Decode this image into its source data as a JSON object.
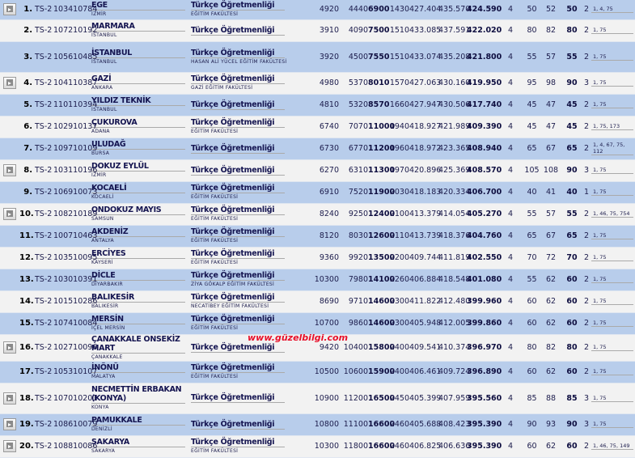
{
  "watermark": "www.güzelbilgi.com",
  "colors": {
    "row_alt": "#b8cdeb",
    "row_plain": "#f2f2f2",
    "watermark": "#e8102a"
  },
  "rows": [
    {
      "video": true,
      "rank": "1.",
      "type": "TS-2",
      "code": "103410784",
      "university": "EGE",
      "city": "İZMİR",
      "program": "Türkçe Öğretmenliği",
      "faculty": "EĞİTİM FAKÜLTESİ",
      "v1": "4920",
      "v2": "4440",
      "v3": "6900",
      "v4": "1430",
      "v5": "427.404",
      "v6": "435.570",
      "v7": "424.590",
      "v8": "4",
      "v9": "50",
      "v10": "52",
      "v11": "50",
      "v12": "2",
      "notes": "1, 4, 75"
    },
    {
      "video": false,
      "rank": "2.",
      "type": "TS-2",
      "code": "107210192",
      "university": "MARMARA",
      "city": "İSTANBUL",
      "program": "Türkçe Öğretmenliği",
      "faculty": "",
      "v1": "3910",
      "v2": "4090",
      "v3": "7500",
      "v4": "1510",
      "v5": "433.085",
      "v6": "437.591",
      "v7": "422.020",
      "v8": "4",
      "v9": "80",
      "v10": "82",
      "v11": "80",
      "v12": "2",
      "notes": "1, 75"
    },
    {
      "video": false,
      "rank": "3.",
      "type": "TS-2",
      "code": "105610485",
      "university": "İSTANBUL",
      "city": "İSTANBUL",
      "program": "Türkçe Öğretmenliği",
      "faculty": "HASAN ALİ YÜCEL EĞİTİM FAKÜLTESİ",
      "v1": "3920",
      "v2": "4500",
      "v3": "7550",
      "v4": "1510",
      "v5": "433.074",
      "v6": "435.208",
      "v7": "421.800",
      "v8": "4",
      "v9": "55",
      "v10": "57",
      "v11": "55",
      "v12": "2",
      "notes": "1, 75"
    },
    {
      "video": true,
      "rank": "4.",
      "type": "TS-2",
      "code": "104110387",
      "university": "GAZİ",
      "city": "ANKARA",
      "program": "Türkçe Öğretmenliği",
      "faculty": "GAZİ EĞİTİM FAKÜLTESİ",
      "v1": "4980",
      "v2": "5370",
      "v3": "8010",
      "v4": "1570",
      "v5": "427.063",
      "v6": "430.160",
      "v7": "419.950",
      "v8": "4",
      "v9": "95",
      "v10": "98",
      "v11": "90",
      "v12": "3",
      "notes": "1, 75"
    },
    {
      "video": false,
      "rank": "5.",
      "type": "TS-2",
      "code": "110110394",
      "university": "YILDIZ TEKNİK",
      "city": "İSTANBUL",
      "program": "Türkçe Öğretmenliği",
      "faculty": "",
      "v1": "4810",
      "v2": "5320",
      "v3": "8570",
      "v4": "1660",
      "v5": "427.947",
      "v6": "430.506",
      "v7": "417.740",
      "v8": "4",
      "v9": "45",
      "v10": "47",
      "v11": "45",
      "v12": "2",
      "notes": "1, 75"
    },
    {
      "video": false,
      "rank": "6.",
      "type": "TS-2",
      "code": "102910137",
      "university": "ÇUKUROVA",
      "city": "ADANA",
      "program": "Türkçe Öğretmenliği",
      "faculty": "EĞİTİM FAKÜLTESİ",
      "v1": "6740",
      "v2": "7070",
      "v3": "11000",
      "v4": "1940",
      "v5": "418.927",
      "v6": "421.989",
      "v7": "409.390",
      "v8": "4",
      "v9": "45",
      "v10": "47",
      "v11": "45",
      "v12": "2",
      "notes": "1, 75, 173"
    },
    {
      "video": false,
      "rank": "7.",
      "type": "TS-2",
      "code": "109710109",
      "university": "ULUDAĞ",
      "city": "BURSA",
      "program": "Türkçe Öğretmenliği",
      "faculty": "",
      "v1": "6730",
      "v2": "6770",
      "v3": "11200",
      "v4": "1960",
      "v5": "418.972",
      "v6": "423.365",
      "v7": "408.940",
      "v8": "4",
      "v9": "65",
      "v10": "67",
      "v11": "65",
      "v12": "2",
      "notes": "1, 4, 67, 75, 112"
    },
    {
      "video": true,
      "rank": "8.",
      "type": "TS-2",
      "code": "103110196",
      "university": "DOKUZ EYLÜL",
      "city": "İZMİR",
      "program": "Türkçe Öğretmenliği",
      "faculty": "",
      "v1": "6270",
      "v2": "6310",
      "v3": "11300",
      "v4": "1970",
      "v5": "420.896",
      "v6": "425.369",
      "v7": "408.570",
      "v8": "4",
      "v9": "105",
      "v10": "108",
      "v11": "90",
      "v12": "3",
      "notes": "1, 75"
    },
    {
      "video": false,
      "rank": "9.",
      "type": "TS-2",
      "code": "106910073",
      "university": "KOCAELİ",
      "city": "KOCAELİ",
      "program": "Türkçe Öğretmenliği",
      "faculty": "EĞİTİM FAKÜLTESİ",
      "v1": "6910",
      "v2": "7520",
      "v3": "11900",
      "v4": "2030",
      "v5": "418.183",
      "v6": "420.334",
      "v7": "406.700",
      "v8": "4",
      "v9": "40",
      "v10": "41",
      "v11": "40",
      "v12": "1",
      "notes": "1, 75"
    },
    {
      "video": true,
      "rank": "10.",
      "type": "TS-2",
      "code": "108210189",
      "university": "ONDOKUZ MAYIS",
      "city": "SAMSUN",
      "program": "Türkçe Öğretmenliği",
      "faculty": "EĞİTİM FAKÜLTESİ",
      "v1": "8240",
      "v2": "9250",
      "v3": "12400",
      "v4": "2100",
      "v5": "413.379",
      "v6": "414.054",
      "v7": "405.270",
      "v8": "4",
      "v9": "55",
      "v10": "57",
      "v11": "55",
      "v12": "2",
      "notes": "1, 46, 75, 754"
    },
    {
      "video": false,
      "rank": "11.",
      "type": "TS-2",
      "code": "100710463",
      "university": "AKDENİZ",
      "city": "ANTALYA",
      "program": "Türkçe Öğretmenliği",
      "faculty": "EĞİTİM FAKÜLTESİ",
      "v1": "8120",
      "v2": "8030",
      "v3": "12600",
      "v4": "2110",
      "v5": "413.739",
      "v6": "418.376",
      "v7": "404.760",
      "v8": "4",
      "v9": "65",
      "v10": "67",
      "v11": "65",
      "v12": "2",
      "notes": "1, 75"
    },
    {
      "video": false,
      "rank": "12.",
      "type": "TS-2",
      "code": "103510095",
      "university": "ERCİYES",
      "city": "KAYSERİ",
      "program": "Türkçe Öğretmenliği",
      "faculty": "EĞİTİM FAKÜLTESİ",
      "v1": "9360",
      "v2": "9920",
      "v3": "13500",
      "v4": "2200",
      "v5": "409.744",
      "v6": "411.819",
      "v7": "402.550",
      "v8": "4",
      "v9": "70",
      "v10": "72",
      "v11": "70",
      "v12": "2",
      "notes": "1, 75"
    },
    {
      "video": false,
      "rank": "13.",
      "type": "TS-2",
      "code": "103010391",
      "university": "DİCLE",
      "city": "DİYARBAKIR",
      "program": "Türkçe Öğretmenliği",
      "faculty": "ZİYA GÖKALP EĞİTİM FAKÜLTESİ",
      "v1": "10300",
      "v2": "7980",
      "v3": "14100",
      "v4": "2260",
      "v5": "406.884",
      "v6": "418.548",
      "v7": "401.080",
      "v8": "4",
      "v9": "55",
      "v10": "62",
      "v11": "60",
      "v12": "2",
      "notes": "1, 75"
    },
    {
      "video": false,
      "rank": "14.",
      "type": "TS-2",
      "code": "101510286",
      "university": "BALIKESİR",
      "city": "BALIKESİR",
      "program": "Türkçe Öğretmenliği",
      "faculty": "NECATİBEY EĞİTİM FAKÜLTESİ",
      "v1": "8690",
      "v2": "9710",
      "v3": "14600",
      "v4": "2300",
      "v5": "411.822",
      "v6": "412.480",
      "v7": "399.960",
      "v8": "4",
      "v9": "60",
      "v10": "62",
      "v11": "60",
      "v12": "2",
      "notes": "1, 75"
    },
    {
      "video": false,
      "rank": "15.",
      "type": "TS-2",
      "code": "107410084",
      "university": "MERSİN",
      "city": "İÇEL MERSİN",
      "program": "Türkçe Öğretmenliği",
      "faculty": "EĞİTİM FAKÜLTESİ",
      "v1": "10700",
      "v2": "9860",
      "v3": "14600",
      "v4": "2300",
      "v5": "405.948",
      "v6": "412.005",
      "v7": "399.860",
      "v8": "4",
      "v9": "60",
      "v10": "62",
      "v11": "60",
      "v12": "2",
      "notes": "1, 75"
    },
    {
      "video": true,
      "rank": "16.",
      "type": "TS-2",
      "code": "102710096",
      "university": "ÇANAKKALE ONSEKİZ MART",
      "city": "ÇANAKKALE",
      "program": "Türkçe Öğretmenliği",
      "faculty": "",
      "v1": "9420",
      "v2": "10400",
      "v3": "15800",
      "v4": "2400",
      "v5": "409.541",
      "v6": "410.374",
      "v7": "396.970",
      "v8": "4",
      "v9": "80",
      "v10": "82",
      "v11": "80",
      "v12": "2",
      "notes": "1, 75"
    },
    {
      "video": false,
      "rank": "17.",
      "type": "TS-2",
      "code": "105310107",
      "university": "İNÖNÜ",
      "city": "MALATYA",
      "program": "Türkçe Öğretmenliği",
      "faculty": "EĞİTİM FAKÜLTESİ",
      "v1": "10500",
      "v2": "10600",
      "v3": "15900",
      "v4": "2400",
      "v5": "406.461",
      "v6": "409.724",
      "v7": "396.890",
      "v8": "4",
      "v9": "60",
      "v10": "62",
      "v11": "60",
      "v12": "2",
      "notes": "1, 75"
    },
    {
      "video": true,
      "rank": "18.",
      "type": "TS-2",
      "code": "107010201",
      "university": "NECMETTİN ERBAKAN (KONYA)",
      "city": "KONYA",
      "program": "Türkçe Öğretmenliği",
      "faculty": "",
      "v1": "10900",
      "v2": "11200",
      "v3": "16500",
      "v4": "2450",
      "v5": "405.399",
      "v6": "407.959",
      "v7": "395.560",
      "v8": "4",
      "v9": "85",
      "v10": "88",
      "v11": "85",
      "v12": "3",
      "notes": "1, 75"
    },
    {
      "video": true,
      "rank": "19.",
      "type": "TS-2",
      "code": "108610079",
      "university": "PAMUKKALE",
      "city": "DENİZLİ",
      "program": "Türkçe Öğretmenliği",
      "faculty": "",
      "v1": "10800",
      "v2": "11100",
      "v3": "16600",
      "v4": "2460",
      "v5": "405.688",
      "v6": "408.423",
      "v7": "395.390",
      "v8": "4",
      "v9": "90",
      "v10": "93",
      "v11": "90",
      "v12": "3",
      "notes": "1, 75"
    },
    {
      "video": true,
      "rank": "20.",
      "type": "TS-2",
      "code": "108810086",
      "university": "SAKARYA",
      "city": "SAKARYA",
      "program": "Türkçe Öğretmenliği",
      "faculty": "EĞİTİM FAKÜLTESİ",
      "v1": "10300",
      "v2": "11800",
      "v3": "16600",
      "v4": "2460",
      "v5": "406.825",
      "v6": "406.636",
      "v7": "395.390",
      "v8": "4",
      "v9": "60",
      "v10": "62",
      "v11": "60",
      "v12": "2",
      "notes": "1, 46, 75, 149"
    }
  ]
}
